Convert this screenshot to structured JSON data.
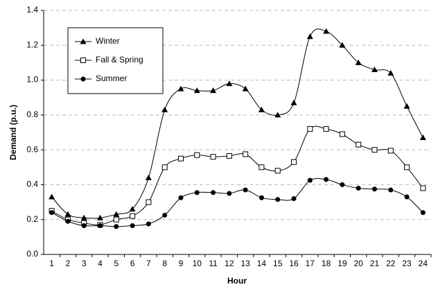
{
  "chart_data": {
    "type": "line",
    "x_label": "Hour",
    "y_label": "Demand (p.u.)",
    "categories": [
      "1",
      "2",
      "3",
      "4",
      "5",
      "6",
      "7",
      "8",
      "9",
      "10",
      "11",
      "12",
      "13",
      "14",
      "15",
      "16",
      "17",
      "18",
      "19",
      "20",
      "21",
      "22",
      "23",
      "24"
    ],
    "series": [
      {
        "name": "Winter",
        "color": "#000000",
        "marker": "triangle",
        "values": [
          0.33,
          0.23,
          0.21,
          0.21,
          0.23,
          0.26,
          0.44,
          0.83,
          0.95,
          0.94,
          0.94,
          0.98,
          0.95,
          0.83,
          0.8,
          0.87,
          1.25,
          1.28,
          1.2,
          1.1,
          1.06,
          1.04,
          0.85,
          0.67
        ]
      },
      {
        "name": "Fall & Spring",
        "color": "#000000",
        "marker": "square-open",
        "values": [
          0.25,
          0.2,
          0.18,
          0.17,
          0.2,
          0.22,
          0.3,
          0.5,
          0.55,
          0.57,
          0.56,
          0.565,
          0.575,
          0.5,
          0.48,
          0.53,
          0.72,
          0.72,
          0.69,
          0.63,
          0.6,
          0.595,
          0.5,
          0.38
        ]
      },
      {
        "name": "Summer",
        "color": "#000000",
        "marker": "circle",
        "values": [
          0.24,
          0.19,
          0.165,
          0.165,
          0.16,
          0.165,
          0.175,
          0.225,
          0.325,
          0.355,
          0.355,
          0.35,
          0.37,
          0.325,
          0.315,
          0.32,
          0.425,
          0.43,
          0.4,
          0.38,
          0.375,
          0.37,
          0.33,
          0.24
        ]
      }
    ],
    "ylim": [
      0,
      1.4
    ],
    "yticks": [
      {
        "value": 0,
        "label": "0.0"
      },
      0.2,
      0.4,
      0.6,
      0.8,
      {
        "value": 1,
        "label": "1.0"
      },
      1.2,
      1.4
    ],
    "grid": true,
    "legend": "upper left"
  }
}
